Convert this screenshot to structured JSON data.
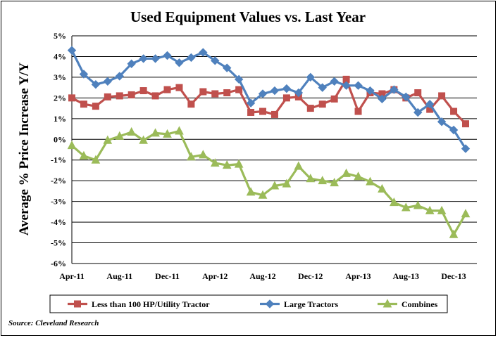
{
  "chart_data": {
    "type": "line",
    "title": "Used Equipment Values vs. Last Year",
    "ylabel": "Average % Price Increase Y/Y",
    "xlabel": "",
    "ylim": [
      -6,
      5
    ],
    "y_ticks": [
      "5%",
      "4%",
      "3%",
      "2%",
      "1%",
      "0%",
      "-1%",
      "-2%",
      "-3%",
      "-4%",
      "-5%",
      "-6%"
    ],
    "y_tick_values": [
      5,
      4,
      3,
      2,
      1,
      0,
      -1,
      -2,
      -3,
      -4,
      -5,
      -6
    ],
    "x_tick_labels": [
      "Apr-11",
      "Aug-11",
      "Dec-11",
      "Apr-12",
      "Aug-12",
      "Dec-12",
      "Apr-13",
      "Aug-13",
      "Dec-13"
    ],
    "x_tick_every": 4,
    "grid": "horizontal",
    "legend_position": "bottom",
    "categories": [
      "Apr-11",
      "May-11",
      "Jun-11",
      "Jul-11",
      "Aug-11",
      "Sep-11",
      "Oct-11",
      "Nov-11",
      "Dec-11",
      "Jan-12",
      "Feb-12",
      "Mar-12",
      "Apr-12",
      "May-12",
      "Jun-12",
      "Jul-12",
      "Aug-12",
      "Sep-12",
      "Oct-12",
      "Nov-12",
      "Dec-12",
      "Jan-13",
      "Feb-13",
      "Mar-13",
      "Apr-13",
      "May-13",
      "Jun-13",
      "Jul-13",
      "Aug-13",
      "Sep-13",
      "Oct-13",
      "Nov-13",
      "Dec-13",
      "Jan-14"
    ],
    "series": [
      {
        "name": "Less than 100 HP/Utility  Tractor",
        "color": "#c0504d",
        "marker": "square",
        "values": [
          2.0,
          1.7,
          1.6,
          2.05,
          2.1,
          2.15,
          2.35,
          2.1,
          2.4,
          2.5,
          1.7,
          2.3,
          2.2,
          2.25,
          2.4,
          1.3,
          1.35,
          1.2,
          2.0,
          2.05,
          1.5,
          1.7,
          1.95,
          2.9,
          1.35,
          2.25,
          2.2,
          2.4,
          2.0,
          2.25,
          1.45,
          2.1,
          1.35,
          0.75
        ]
      },
      {
        "name": "Large Tractors",
        "color": "#4f81bd",
        "marker": "diamond",
        "values": [
          4.3,
          3.15,
          2.65,
          2.8,
          3.05,
          3.65,
          3.9,
          3.9,
          4.05,
          3.7,
          3.95,
          4.2,
          3.8,
          3.45,
          2.9,
          1.75,
          2.2,
          2.35,
          2.45,
          2.25,
          3.0,
          2.5,
          2.8,
          2.6,
          2.6,
          2.35,
          1.95,
          2.4,
          2.05,
          1.3,
          1.7,
          0.85,
          0.45,
          -0.45
        ]
      },
      {
        "name": "Combines",
        "color": "#9bbb59",
        "marker": "triangle",
        "values": [
          -0.3,
          -0.8,
          -1.0,
          -0.05,
          0.15,
          0.35,
          -0.05,
          0.3,
          0.25,
          0.4,
          -0.85,
          -0.75,
          -1.15,
          -1.25,
          -1.2,
          -2.55,
          -2.7,
          -2.25,
          -2.15,
          -1.3,
          -1.9,
          -2.0,
          -2.1,
          -1.65,
          -1.8,
          -2.05,
          -2.4,
          -3.05,
          -3.3,
          -3.2,
          -3.45,
          -3.45,
          -4.6,
          -3.6
        ]
      }
    ],
    "source": "Source: Cleveland Research"
  }
}
